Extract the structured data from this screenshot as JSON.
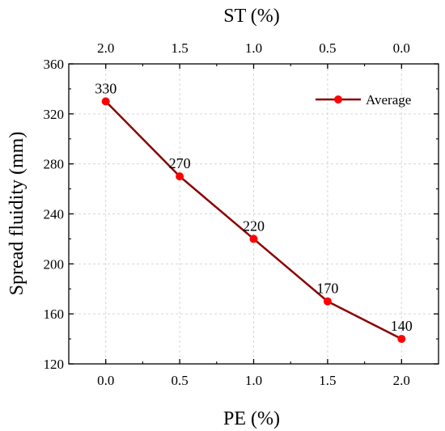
{
  "chart_data": {
    "type": "line",
    "xlabel": "PE (%)",
    "x2label": "ST (%)",
    "ylabel": "Spread fluidity (mm)",
    "x": [
      0.0,
      0.5,
      1.0,
      1.5,
      2.0
    ],
    "x_ticks": [
      "0.0",
      "0.5",
      "1.0",
      "1.5",
      "2.0"
    ],
    "x2_ticks": [
      "2.0",
      "1.5",
      "1.0",
      "0.5",
      "0.0"
    ],
    "y_ticks": [
      "120",
      "160",
      "200",
      "240",
      "280",
      "320",
      "360"
    ],
    "xlim": [
      -0.25,
      2.25
    ],
    "ylim": [
      120,
      360
    ],
    "grid": true,
    "legend": "top-right",
    "series": [
      {
        "name": "Average",
        "values": [
          330,
          270,
          220,
          170,
          140
        ],
        "labels": [
          "330",
          "270",
          "220",
          "170",
          "140"
        ],
        "line_color": "#8b0000",
        "marker_color": "#ff0000"
      }
    ]
  }
}
